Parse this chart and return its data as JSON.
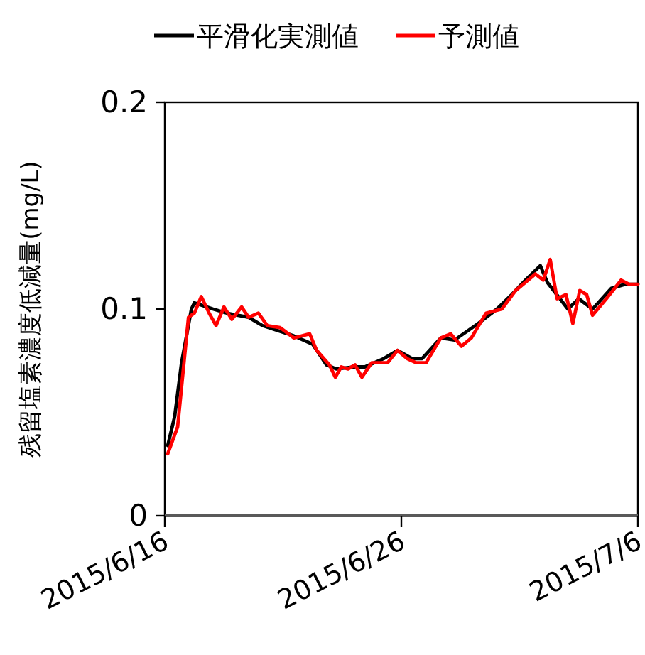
{
  "chart_data": {
    "type": "line",
    "ylabel": "残留塩素濃度低減量(mg/L)",
    "xlim": [
      "2015-06-16",
      "2015-07-06"
    ],
    "xticks": [
      {
        "value": "2015-06-16",
        "label": "2015/6/16"
      },
      {
        "value": "2015-06-26",
        "label": "2015/6/26"
      },
      {
        "value": "2015-07-06",
        "label": "2015/7/6"
      }
    ],
    "ylim": [
      0,
      0.2
    ],
    "yticks": [
      0,
      0.1,
      0.2
    ],
    "legend": "top",
    "grid": false,
    "series": [
      {
        "name": "平滑化実測値",
        "color": "#000000",
        "x": [
          "2015-06-16T03:00",
          "2015-06-16T10:00",
          "2015-06-16T17:00",
          "2015-06-17T03:00",
          "2015-06-17T06:00",
          "2015-06-18T01:00",
          "2015-06-18T15:00",
          "2015-06-19T13:00",
          "2015-06-20T03:00",
          "2015-06-21T11:00",
          "2015-06-22T06:00",
          "2015-06-22T20:00",
          "2015-06-23T06:00",
          "2015-06-24T01:00",
          "2015-06-24T11:00",
          "2015-06-25T06:00",
          "2015-06-25T20:00",
          "2015-06-26T11:00",
          "2015-06-26T21:00",
          "2015-06-27T16:00",
          "2015-06-28T06:00",
          "2015-06-29T06:00",
          "2015-06-30T01:00",
          "2015-06-30T16:00",
          "2015-07-01T06:00",
          "2015-07-01T21:00",
          "2015-07-02T04:00",
          "2015-07-03T01:00",
          "2015-07-03T12:00",
          "2015-07-04T02:00",
          "2015-07-04T21:00",
          "2015-07-05T11:00",
          "2015-07-06T00:00"
        ],
        "values": [
          0.034,
          0.048,
          0.074,
          0.1,
          0.103,
          0.1,
          0.098,
          0.096,
          0.092,
          0.087,
          0.083,
          0.073,
          0.071,
          0.072,
          0.072,
          0.076,
          0.08,
          0.076,
          0.076,
          0.086,
          0.085,
          0.093,
          0.1,
          0.107,
          0.114,
          0.121,
          0.113,
          0.1,
          0.105,
          0.1,
          0.11,
          0.112,
          0.112
        ]
      },
      {
        "name": "予測値",
        "color": "#ff0000",
        "x": [
          "2015-06-16T03:00",
          "2015-06-16T13:00",
          "2015-06-17T00:00",
          "2015-06-17T06:00",
          "2015-06-17T13:00",
          "2015-06-17T21:00",
          "2015-06-18T04:00",
          "2015-06-18T12:00",
          "2015-06-18T20:00",
          "2015-06-19T06:00",
          "2015-06-19T13:00",
          "2015-06-19T23:00",
          "2015-06-20T08:00",
          "2015-06-20T21:00",
          "2015-06-21T11:00",
          "2015-06-22T03:00",
          "2015-06-22T10:00",
          "2015-06-22T23:00",
          "2015-06-23T05:00",
          "2015-06-23T11:00",
          "2015-06-23T18:00",
          "2015-06-24T01:00",
          "2015-06-24T08:00",
          "2015-06-24T18:00",
          "2015-06-25T10:00",
          "2015-06-25T20:00",
          "2015-06-26T06:00",
          "2015-06-26T15:00",
          "2015-06-27T01:00",
          "2015-06-27T16:00",
          "2015-06-28T02:00",
          "2015-06-28T13:00",
          "2015-06-28T23:00",
          "2015-06-29T14:00",
          "2015-06-30T06:00",
          "2015-06-30T20:00",
          "2015-07-01T16:00",
          "2015-07-02T00:00",
          "2015-07-02T07:00",
          "2015-07-02T14:00",
          "2015-07-02T23:00",
          "2015-07-03T06:00",
          "2015-07-03T13:00",
          "2015-07-03T20:00",
          "2015-07-04T02:00",
          "2015-07-04T16:00",
          "2015-07-05T07:00",
          "2015-07-05T15:00",
          "2015-07-06T00:00"
        ],
        "values": [
          0.03,
          0.043,
          0.096,
          0.098,
          0.106,
          0.098,
          0.092,
          0.101,
          0.095,
          0.101,
          0.096,
          0.098,
          0.092,
          0.091,
          0.086,
          0.088,
          0.08,
          0.073,
          0.067,
          0.072,
          0.071,
          0.073,
          0.067,
          0.074,
          0.074,
          0.08,
          0.076,
          0.074,
          0.074,
          0.086,
          0.088,
          0.082,
          0.086,
          0.098,
          0.1,
          0.109,
          0.117,
          0.114,
          0.124,
          0.105,
          0.107,
          0.093,
          0.109,
          0.107,
          0.097,
          0.105,
          0.114,
          0.112,
          0.112
        ]
      }
    ]
  }
}
